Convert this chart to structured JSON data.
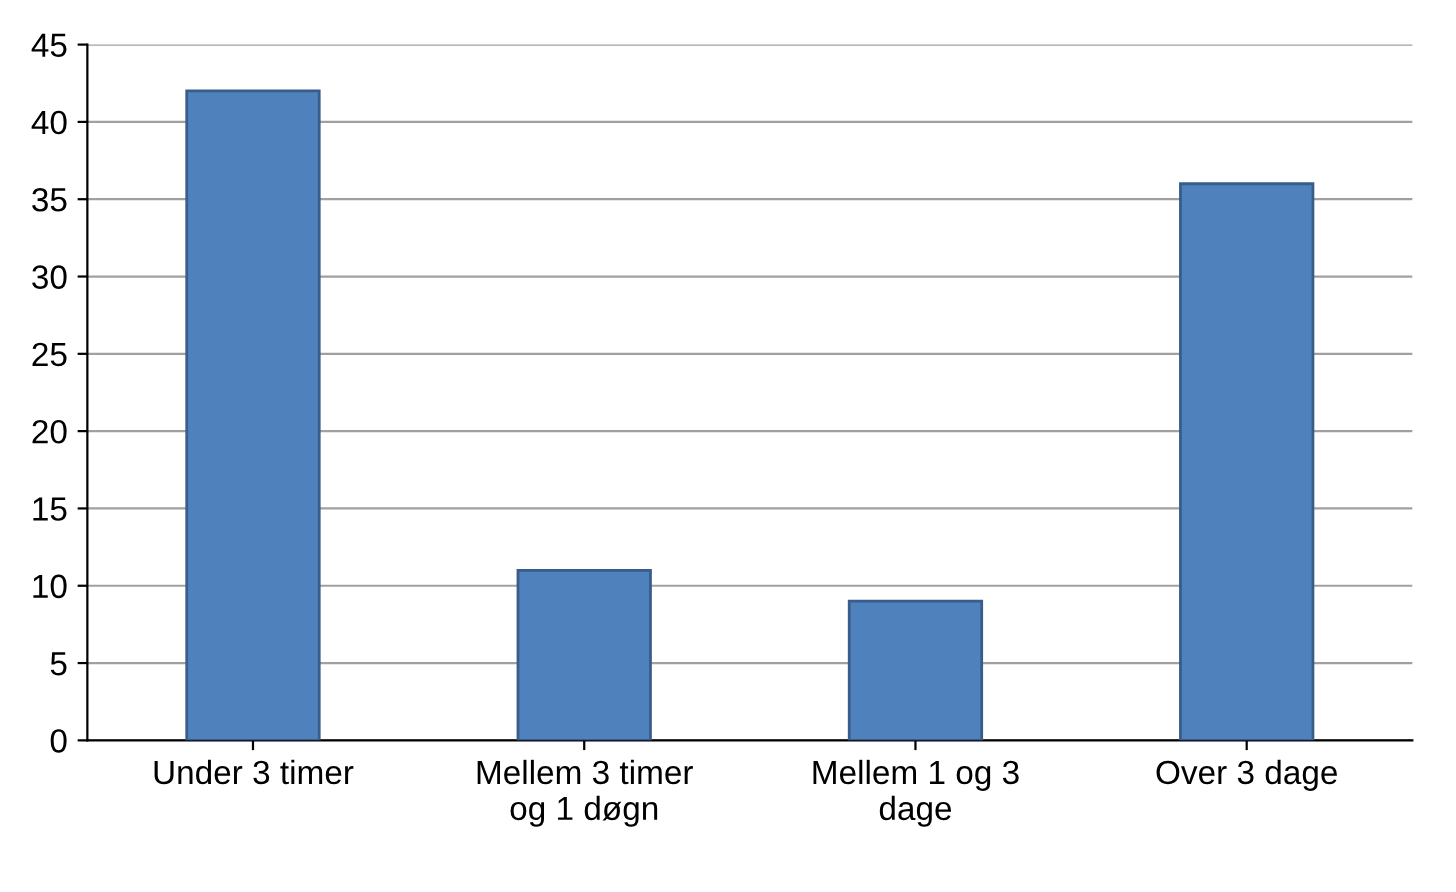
{
  "chart_data": {
    "type": "bar",
    "categories": [
      "Under 3 timer",
      "Mellem 3 timer\nog 1 døgn",
      "Mellem 1 og 3\ndage",
      "Over 3 dage"
    ],
    "values": [
      42,
      11,
      9,
      36
    ],
    "color": "#4f81bd",
    "ylim": [
      0,
      45
    ],
    "yticks": [
      0,
      5,
      10,
      15,
      20,
      25,
      30,
      35,
      40,
      45
    ],
    "grid": "y",
    "legend": false
  }
}
